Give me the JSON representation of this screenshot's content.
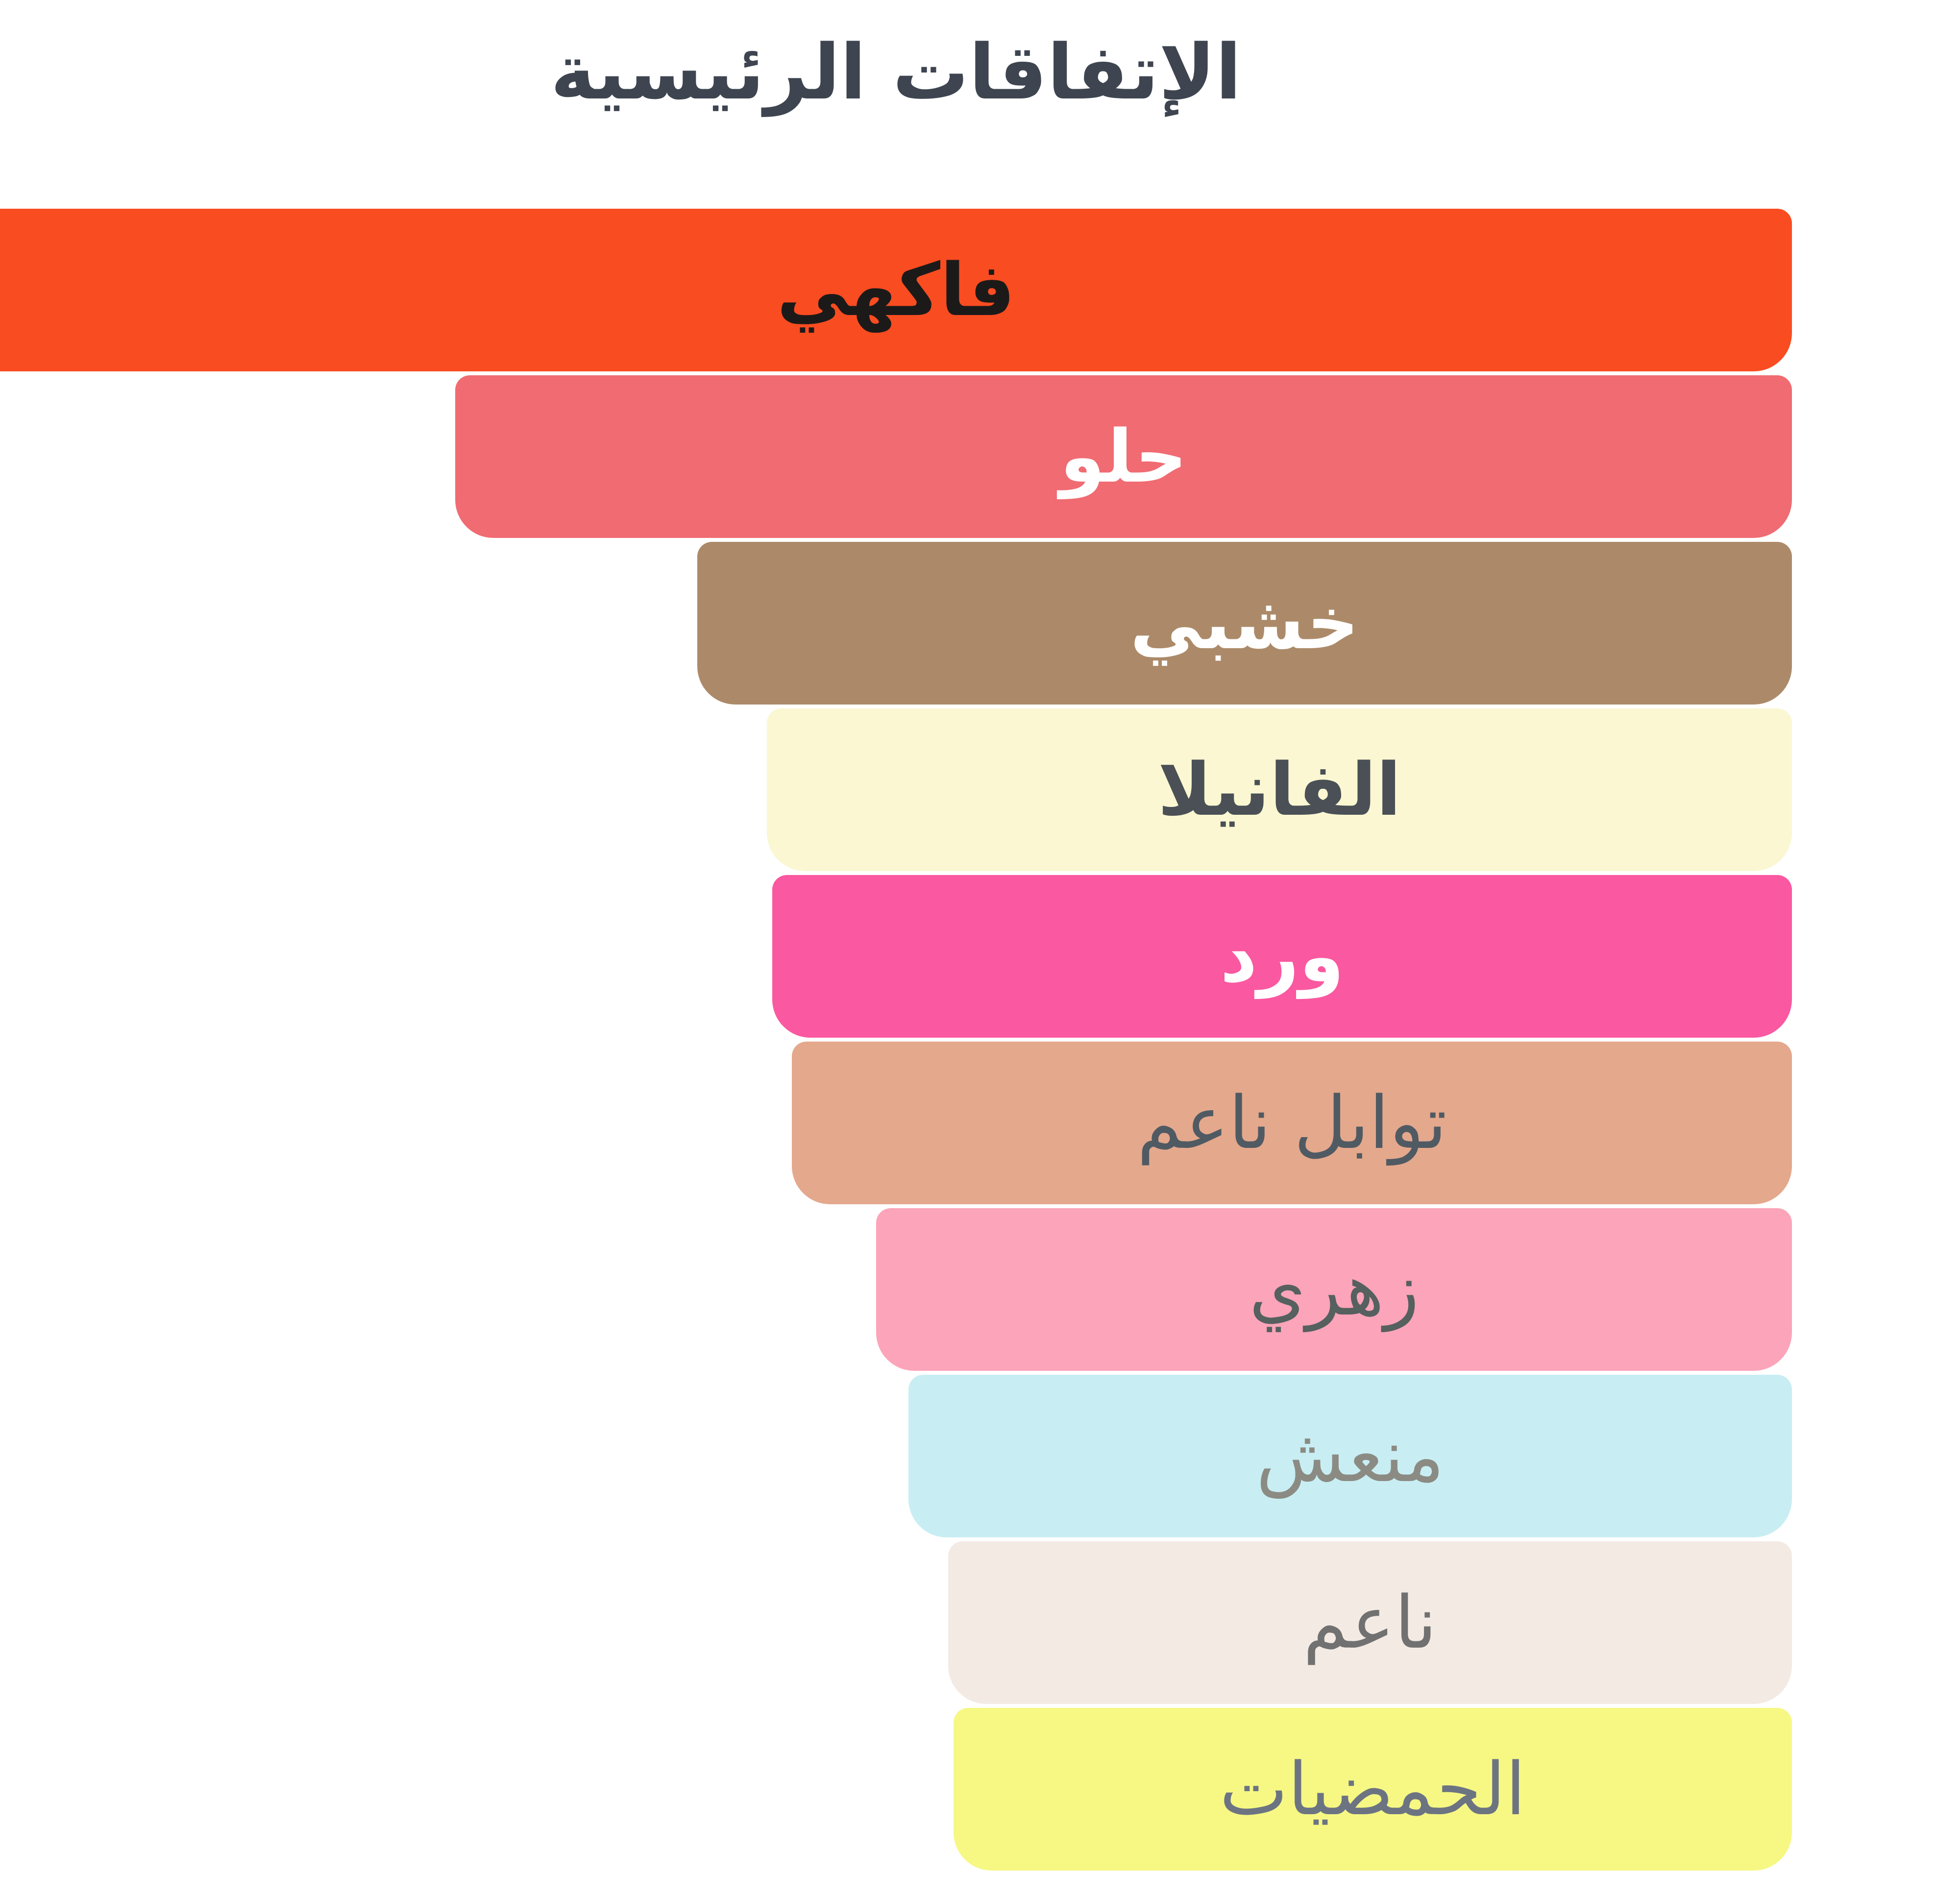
{
  "chart_data": {
    "type": "bar",
    "orientation": "horizontal",
    "direction": "rtl",
    "title": "الإتفاقات الرئيسية",
    "title_color": "#3E4550",
    "background": "#FFFFFF",
    "xlabel": "",
    "ylabel": "",
    "grid": false,
    "legend": false,
    "value_unit": "percent of widest bar (bar length)",
    "xlim": [
      0,
      100
    ],
    "categories": [
      "فاكهي",
      "حلو",
      "خشبي",
      "الفانيلا",
      "ورد",
      "توابل ناعم",
      "زهري",
      "منعش",
      "ناعم",
      "الحمضيات"
    ],
    "values": [
      100,
      74.6,
      61.1,
      57.2,
      56.9,
      55.8,
      51.1,
      49.3,
      47.1,
      46.8
    ],
    "bars": [
      {
        "label": "فاكهي",
        "value": 100,
        "bg": "#F94C21",
        "text_color": "#1C1A19",
        "bold": true
      },
      {
        "label": "حلو",
        "value": 74.6,
        "bg": "#F06B72",
        "text_color": "#FFFFFF",
        "bold": true
      },
      {
        "label": "خشبي",
        "value": 61.1,
        "bg": "#AC8A69",
        "text_color": "#FFFFFF",
        "bold": true
      },
      {
        "label": "الفانيلا",
        "value": 57.2,
        "bg": "#FAF7D2",
        "text_color": "#4A5056",
        "bold": true
      },
      {
        "label": "ورد",
        "value": 56.9,
        "bg": "#FA58A0",
        "text_color": "#FFFFFF",
        "bold": true
      },
      {
        "label": "توابل ناعم",
        "value": 55.8,
        "bg": "#E4A88C",
        "text_color": "#505A63",
        "bold": false
      },
      {
        "label": "زهري",
        "value": 51.1,
        "bg": "#FCA4B9",
        "text_color": "#55605F",
        "bold": false
      },
      {
        "label": "منعش",
        "value": 49.3,
        "bg": "#C8EEF3",
        "text_color": "#8B8B84",
        "bold": false
      },
      {
        "label": "ناعم",
        "value": 47.1,
        "bg": "#F3EAE4",
        "text_color": "#717171",
        "bold": false
      },
      {
        "label": "الحمضيات",
        "value": 46.8,
        "bg": "#F6F883",
        "text_color": "#6C7482",
        "bold": false
      }
    ]
  }
}
